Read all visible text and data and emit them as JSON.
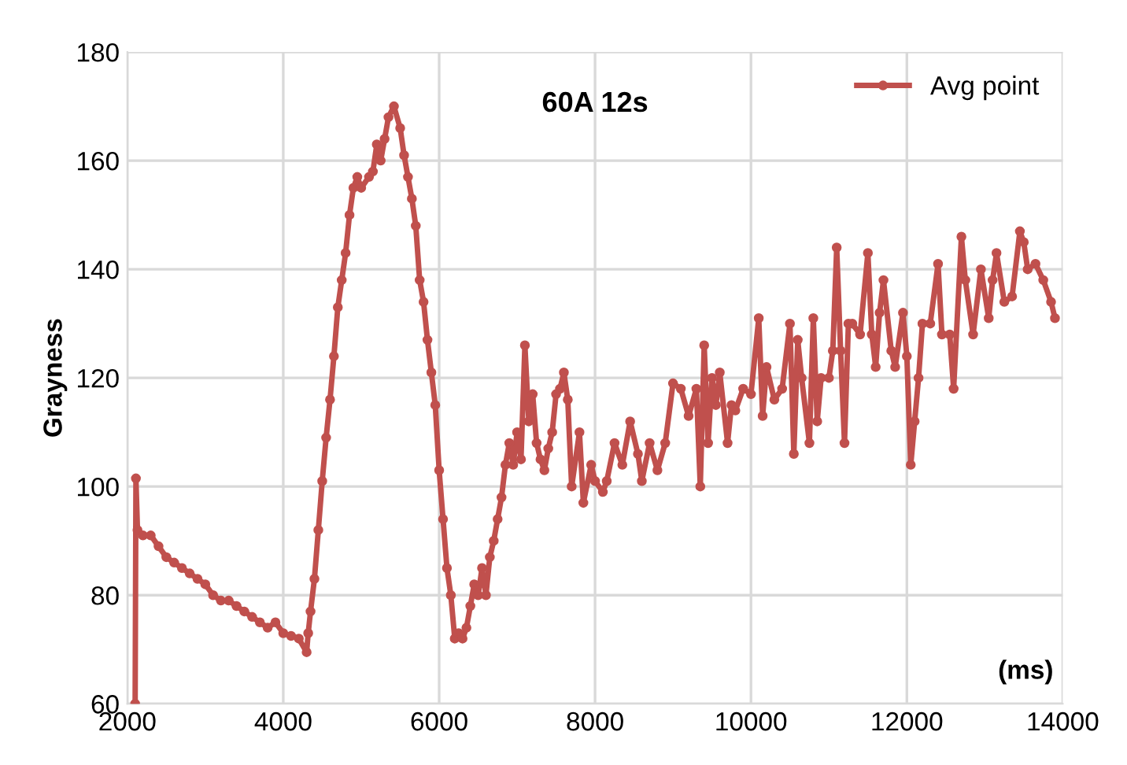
{
  "chart_data": {
    "type": "line",
    "title": "60A 12s",
    "xlabel": "(ms)",
    "ylabel": "Grayness",
    "xlim": [
      2000,
      14000
    ],
    "xticks": [
      2000,
      4000,
      6000,
      8000,
      10000,
      12000,
      14000
    ],
    "ylim": [
      60,
      180
    ],
    "yticks": [
      60,
      80,
      100,
      120,
      140,
      160,
      180
    ],
    "grid": true,
    "legend": "top right",
    "marker": "circle",
    "line_style": "solid",
    "series": [
      {
        "name": "Avg point",
        "color": "#c0504d",
        "x": [
          2100,
          2110,
          2130,
          2200,
          2300,
          2400,
          2500,
          2600,
          2700,
          2800,
          2900,
          3000,
          3100,
          3200,
          3300,
          3400,
          3500,
          3600,
          3700,
          3800,
          3900,
          4000,
          4100,
          4200,
          4300,
          4320,
          4350,
          4400,
          4450,
          4500,
          4550,
          4600,
          4650,
          4700,
          4750,
          4800,
          4850,
          4900,
          4950,
          5000,
          5100,
          5150,
          5200,
          5250,
          5300,
          5350,
          5420,
          5500,
          5550,
          5600,
          5650,
          5700,
          5750,
          5800,
          5850,
          5900,
          5950,
          6000,
          6050,
          6100,
          6150,
          6200,
          6250,
          6300,
          6350,
          6400,
          6450,
          6500,
          6550,
          6600,
          6650,
          6700,
          6750,
          6800,
          6850,
          6900,
          6950,
          7000,
          7050,
          7100,
          7150,
          7200,
          7250,
          7300,
          7350,
          7400,
          7450,
          7500,
          7550,
          7600,
          7650,
          7700,
          7800,
          7850,
          7950,
          8000,
          8100,
          8150,
          8250,
          8350,
          8450,
          8550,
          8600,
          8700,
          8800,
          8900,
          9000,
          9100,
          9200,
          9300,
          9350,
          9400,
          9450,
          9500,
          9550,
          9600,
          9700,
          9750,
          9800,
          9900,
          10000,
          10100,
          10150,
          10200,
          10300,
          10400,
          10500,
          10550,
          10600,
          10650,
          10750,
          10800,
          10850,
          10900,
          11000,
          11050,
          11100,
          11150,
          11200,
          11250,
          11300,
          11400,
          11500,
          11550,
          11600,
          11650,
          11700,
          11800,
          11850,
          11950,
          12000,
          12050,
          12100,
          12150,
          12200,
          12300,
          12400,
          12450,
          12550,
          12600,
          12700,
          12750,
          12850,
          12950,
          13050,
          13100,
          13150,
          13250,
          13350,
          13450,
          13500,
          13550,
          13650,
          13750,
          13850,
          13900
        ],
        "values": [
          60,
          101.5,
          92,
          91,
          91,
          89,
          87,
          86,
          85,
          84,
          83,
          82,
          80,
          79,
          79,
          78,
          77,
          76,
          75,
          74,
          75,
          73,
          72.5,
          72,
          69.5,
          73,
          77,
          83,
          92,
          101,
          109,
          116,
          124,
          133,
          138,
          143,
          150,
          155,
          157,
          155,
          157,
          158,
          163,
          160,
          164,
          168,
          170,
          166,
          161,
          157,
          153,
          148,
          138,
          134,
          127,
          121,
          115,
          103,
          94,
          85,
          80,
          72,
          73,
          72,
          74,
          78,
          82,
          80,
          85,
          80,
          87,
          90,
          94,
          98,
          104,
          108,
          104,
          110,
          105,
          126,
          112,
          117,
          108,
          105,
          103,
          107,
          110,
          117,
          118,
          121,
          116,
          100,
          110,
          97,
          104,
          101,
          99,
          101,
          108,
          104,
          112,
          106,
          101,
          108,
          103,
          108,
          119,
          118,
          113,
          118,
          100,
          126,
          108,
          120,
          115,
          121,
          108,
          115,
          114,
          118,
          117,
          131,
          113,
          122,
          116,
          118,
          130,
          106,
          127,
          120,
          108,
          131,
          112,
          120,
          120,
          125,
          144,
          125,
          108,
          130,
          130,
          128,
          143,
          128,
          122,
          132,
          138,
          125,
          122,
          132,
          124,
          104,
          112,
          120,
          130,
          130,
          141,
          128,
          128,
          118,
          146,
          138,
          128,
          140,
          131,
          138,
          143,
          134,
          135,
          147,
          145,
          140,
          141,
          138,
          134,
          131
        ]
      }
    ]
  }
}
